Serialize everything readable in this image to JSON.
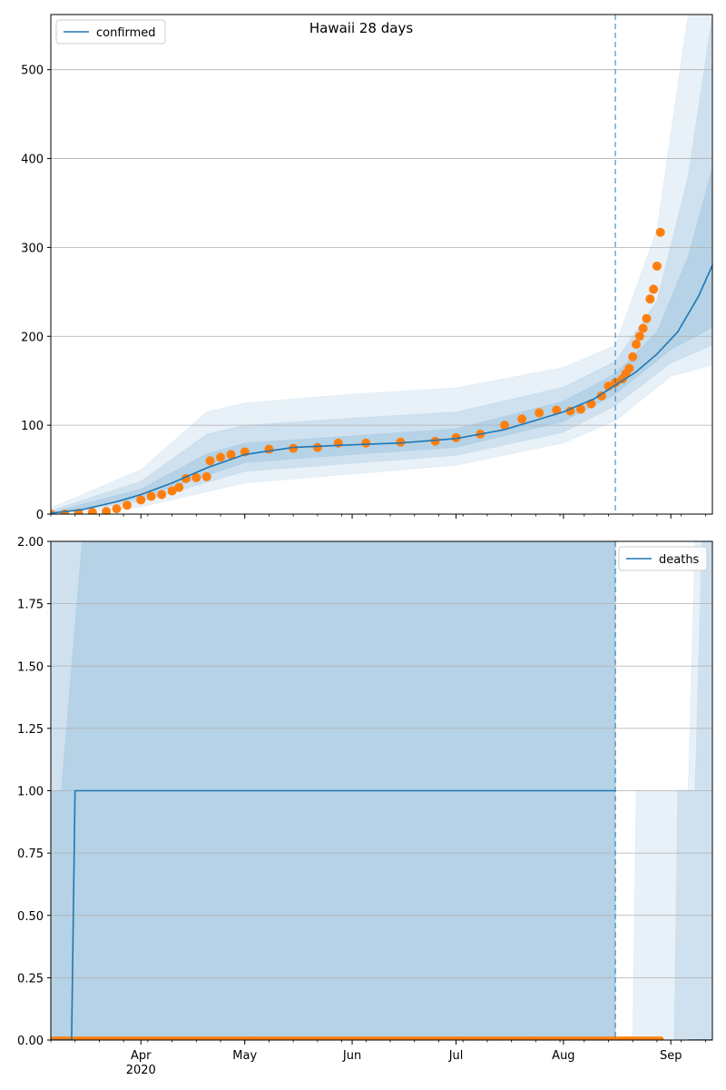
{
  "figure_title": "Hawaii 28 days",
  "colors": {
    "model": "#1f77b4",
    "observed": "#ff7f0e",
    "band": "#1f77b4",
    "grid": "#b0b0b0",
    "vline": "#1f77b4"
  },
  "chart_data": [
    {
      "type": "line",
      "panel": "top",
      "title": "Hawaii 28 days",
      "xlabel": "",
      "ylabel": "",
      "x_axis": {
        "type": "date",
        "range": [
          "2020-03-06",
          "2020-09-13"
        ],
        "ticks": [
          {
            "date": "2020-04-01",
            "label": "Apr",
            "sublabel": "2020"
          },
          {
            "date": "2020-05-01",
            "label": "May",
            "sublabel": ""
          },
          {
            "date": "2020-06-01",
            "label": "Jun",
            "sublabel": ""
          },
          {
            "date": "2020-07-01",
            "label": "Jul",
            "sublabel": ""
          },
          {
            "date": "2020-08-01",
            "label": "Aug",
            "sublabel": ""
          },
          {
            "date": "2020-09-01",
            "label": "Sep",
            "sublabel": ""
          }
        ],
        "show_tick_labels": false
      },
      "y_axis": {
        "range": [
          0,
          562
        ],
        "ticks": [
          0,
          100,
          200,
          300,
          400,
          500
        ],
        "tick_labels": [
          "0",
          "100",
          "200",
          "300",
          "400",
          "500"
        ]
      },
      "grid": "horizontal",
      "legend": {
        "placement": "top-left",
        "entries": [
          "confirmed"
        ]
      },
      "forecast_start": "2020-08-16",
      "series": [
        {
          "name": "confirmed",
          "kind": "model-line",
          "points": [
            [
              "2020-03-06",
              1
            ],
            [
              "2020-03-15",
              5
            ],
            [
              "2020-03-25",
              14
            ],
            [
              "2020-04-01",
              22
            ],
            [
              "2020-04-10",
              35
            ],
            [
              "2020-04-20",
              52
            ],
            [
              "2020-05-01",
              67
            ],
            [
              "2020-05-15",
              75
            ],
            [
              "2020-06-01",
              78
            ],
            [
              "2020-06-15",
              80
            ],
            [
              "2020-07-01",
              85
            ],
            [
              "2020-07-15",
              95
            ],
            [
              "2020-08-01",
              115
            ],
            [
              "2020-08-10",
              130
            ],
            [
              "2020-08-16",
              145
            ],
            [
              "2020-08-22",
              160
            ],
            [
              "2020-08-28",
              180
            ],
            [
              "2020-09-03",
              205
            ],
            [
              "2020-09-09",
              245
            ],
            [
              "2020-09-13",
              280
            ]
          ]
        },
        {
          "name": "",
          "kind": "observed-points",
          "points": [
            [
              "2020-03-06",
              0
            ],
            [
              "2020-03-10",
              0
            ],
            [
              "2020-03-14",
              1
            ],
            [
              "2020-03-18",
              2
            ],
            [
              "2020-03-22",
              3
            ],
            [
              "2020-03-25",
              6
            ],
            [
              "2020-03-28",
              10
            ],
            [
              "2020-04-01",
              16
            ],
            [
              "2020-04-04",
              20
            ],
            [
              "2020-04-07",
              22
            ],
            [
              "2020-04-10",
              26
            ],
            [
              "2020-04-12",
              30
            ],
            [
              "2020-04-14",
              40
            ],
            [
              "2020-04-17",
              41
            ],
            [
              "2020-04-20",
              42
            ],
            [
              "2020-04-21",
              60
            ],
            [
              "2020-04-24",
              64
            ],
            [
              "2020-04-27",
              67
            ],
            [
              "2020-05-01",
              70
            ],
            [
              "2020-05-08",
              73
            ],
            [
              "2020-05-15",
              74
            ],
            [
              "2020-05-22",
              75
            ],
            [
              "2020-05-28",
              80
            ],
            [
              "2020-06-05",
              80
            ],
            [
              "2020-06-15",
              81
            ],
            [
              "2020-06-25",
              82
            ],
            [
              "2020-07-01",
              86
            ],
            [
              "2020-07-08",
              90
            ],
            [
              "2020-07-15",
              100
            ],
            [
              "2020-07-20",
              107
            ],
            [
              "2020-07-25",
              114
            ],
            [
              "2020-07-30",
              117
            ],
            [
              "2020-08-03",
              116
            ],
            [
              "2020-08-06",
              118
            ],
            [
              "2020-08-09",
              124
            ],
            [
              "2020-08-12",
              133
            ],
            [
              "2020-08-14",
              144
            ],
            [
              "2020-08-16",
              148
            ],
            [
              "2020-08-18",
              152
            ],
            [
              "2020-08-19",
              158
            ],
            [
              "2020-08-20",
              164
            ],
            [
              "2020-08-21",
              177
            ],
            [
              "2020-08-22",
              191
            ],
            [
              "2020-08-23",
              200
            ],
            [
              "2020-08-24",
              209
            ],
            [
              "2020-08-25",
              220
            ],
            [
              "2020-08-26",
              242
            ],
            [
              "2020-08-27",
              253
            ],
            [
              "2020-08-28",
              279
            ],
            [
              "2020-08-29",
              317
            ]
          ]
        }
      ],
      "bands": [
        {
          "level": "outer",
          "lower": [
            [
              "2020-03-06",
              0
            ],
            [
              "2020-04-01",
              8
            ],
            [
              "2020-05-01",
              35
            ],
            [
              "2020-06-01",
              45
            ],
            [
              "2020-07-01",
              55
            ],
            [
              "2020-08-01",
              80
            ],
            [
              "2020-08-16",
              105
            ],
            [
              "2020-09-01",
              155
            ],
            [
              "2020-09-13",
              168
            ]
          ],
          "upper": [
            [
              "2020-03-06",
              7
            ],
            [
              "2020-04-01",
              50
            ],
            [
              "2020-04-20",
              115
            ],
            [
              "2020-05-01",
              125
            ],
            [
              "2020-06-01",
              135
            ],
            [
              "2020-07-01",
              142
            ],
            [
              "2020-08-01",
              165
            ],
            [
              "2020-08-16",
              190
            ],
            [
              "2020-08-28",
              320
            ],
            [
              "2020-09-06",
              562
            ],
            [
              "2020-09-13",
              562
            ]
          ]
        },
        {
          "level": "middle",
          "lower": [
            [
              "2020-03-06",
              0
            ],
            [
              "2020-04-01",
              14
            ],
            [
              "2020-05-01",
              48
            ],
            [
              "2020-06-01",
              57
            ],
            [
              "2020-07-01",
              66
            ],
            [
              "2020-08-01",
              92
            ],
            [
              "2020-08-16",
              122
            ],
            [
              "2020-09-01",
              170
            ],
            [
              "2020-09-13",
              190
            ]
          ],
          "upper": [
            [
              "2020-03-06",
              4
            ],
            [
              "2020-04-01",
              37
            ],
            [
              "2020-04-20",
              90
            ],
            [
              "2020-05-01",
              100
            ],
            [
              "2020-06-01",
              108
            ],
            [
              "2020-07-01",
              115
            ],
            [
              "2020-08-01",
              143
            ],
            [
              "2020-08-16",
              172
            ],
            [
              "2020-08-28",
              240
            ],
            [
              "2020-09-06",
              380
            ],
            [
              "2020-09-13",
              562
            ]
          ]
        },
        {
          "level": "inner",
          "lower": [
            [
              "2020-03-06",
              0
            ],
            [
              "2020-04-01",
              18
            ],
            [
              "2020-05-01",
              58
            ],
            [
              "2020-06-01",
              67
            ],
            [
              "2020-07-01",
              75
            ],
            [
              "2020-08-01",
              104
            ],
            [
              "2020-08-16",
              135
            ],
            [
              "2020-09-01",
              185
            ],
            [
              "2020-09-13",
              210
            ]
          ],
          "upper": [
            [
              "2020-03-06",
              2
            ],
            [
              "2020-04-01",
              28
            ],
            [
              "2020-04-20",
              68
            ],
            [
              "2020-05-01",
              80
            ],
            [
              "2020-06-01",
              88
            ],
            [
              "2020-07-01",
              96
            ],
            [
              "2020-08-01",
              127
            ],
            [
              "2020-08-16",
              158
            ],
            [
              "2020-08-28",
              205
            ],
            [
              "2020-09-06",
              290
            ],
            [
              "2020-09-13",
              390
            ]
          ]
        }
      ]
    },
    {
      "type": "line",
      "panel": "bottom",
      "title": "",
      "xlabel": "",
      "ylabel": "",
      "x_axis": {
        "type": "date",
        "range": [
          "2020-03-06",
          "2020-09-13"
        ],
        "ticks": [
          {
            "date": "2020-04-01",
            "label": "Apr",
            "sublabel": "2020"
          },
          {
            "date": "2020-05-01",
            "label": "May",
            "sublabel": ""
          },
          {
            "date": "2020-06-01",
            "label": "Jun",
            "sublabel": ""
          },
          {
            "date": "2020-07-01",
            "label": "Jul",
            "sublabel": ""
          },
          {
            "date": "2020-08-01",
            "label": "Aug",
            "sublabel": ""
          },
          {
            "date": "2020-09-01",
            "label": "Sep",
            "sublabel": ""
          }
        ],
        "show_tick_labels": true
      },
      "y_axis": {
        "range": [
          0,
          2
        ],
        "ticks": [
          0,
          0.25,
          0.5,
          0.75,
          1,
          1.25,
          1.5,
          1.75,
          2
        ],
        "tick_labels": [
          "0.00",
          "0.25",
          "0.50",
          "0.75",
          "1.00",
          "1.25",
          "1.50",
          "1.75",
          "2.00"
        ]
      },
      "grid": "horizontal",
      "legend": {
        "placement": "top-right",
        "entries": [
          "deaths"
        ]
      },
      "forecast_start": "2020-08-16",
      "series": [
        {
          "name": "deaths",
          "kind": "model-line",
          "points": [
            [
              "2020-03-06",
              0
            ],
            [
              "2020-03-12",
              0
            ],
            [
              "2020-03-13",
              1
            ],
            [
              "2020-08-16",
              1
            ]
          ]
        },
        {
          "name": "deaths",
          "kind": "model-line",
          "points": [
            [
              "2020-09-06",
              0
            ],
            [
              "2020-09-13",
              0
            ]
          ]
        },
        {
          "name": "",
          "kind": "observed-points",
          "dense_range": {
            "start": "2020-03-06",
            "end": "2020-08-29",
            "value": 0
          }
        }
      ],
      "bands": [
        {
          "level": "outer",
          "lower": [
            [
              "2020-03-06",
              0
            ],
            [
              "2020-09-13",
              0
            ]
          ],
          "upper": [
            [
              "2020-03-06",
              2
            ],
            [
              "2020-08-16",
              2
            ],
            [
              "2020-08-16",
              0
            ],
            [
              "2020-08-21",
              0
            ],
            [
              "2020-08-22",
              1
            ],
            [
              "2020-09-06",
              1
            ],
            [
              "2020-09-08",
              2
            ],
            [
              "2020-09-13",
              2
            ]
          ]
        },
        {
          "level": "middle",
          "lower": [
            [
              "2020-03-06",
              0
            ],
            [
              "2020-09-13",
              0
            ]
          ],
          "upper": [
            [
              "2020-03-06",
              2
            ],
            [
              "2020-08-16",
              2
            ],
            [
              "2020-08-16",
              0
            ],
            [
              "2020-09-02",
              0
            ],
            [
              "2020-09-03",
              1
            ],
            [
              "2020-09-08",
              1
            ],
            [
              "2020-09-10",
              2
            ],
            [
              "2020-09-13",
              2
            ]
          ]
        },
        {
          "level": "inner",
          "lower": [
            [
              "2020-03-06",
              0
            ],
            [
              "2020-09-13",
              0
            ]
          ],
          "upper": [
            [
              "2020-03-06",
              1
            ],
            [
              "2020-03-09",
              1
            ],
            [
              "2020-03-15",
              2
            ],
            [
              "2020-08-16",
              2
            ],
            [
              "2020-08-16",
              0
            ],
            [
              "2020-09-13",
              0
            ]
          ]
        }
      ]
    }
  ]
}
